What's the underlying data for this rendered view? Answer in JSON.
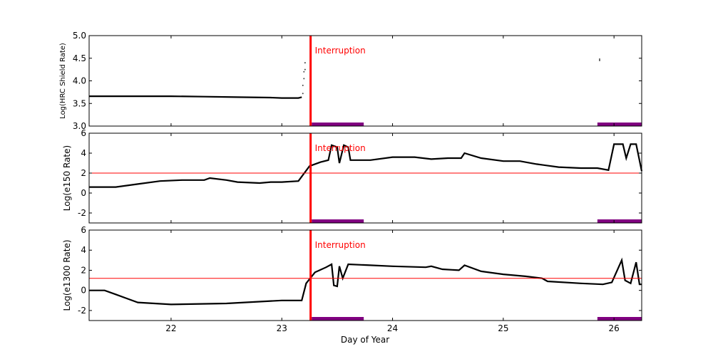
{
  "chart_data": {
    "type": "line",
    "xlabel": "Day of Year",
    "xlim": [
      21.26,
      26.25
    ],
    "xticks": [
      22,
      23,
      24,
      25,
      26
    ],
    "grid": false,
    "colors": {
      "series": "#000000",
      "interruption": "#ff0000",
      "threshold": "#ff0000",
      "interval_bar": "#800080"
    },
    "interruption": {
      "label": "Interruption",
      "x": 23.26
    },
    "interval_bars": [
      [
        23.27,
        23.74
      ],
      [
        25.85,
        26.25
      ]
    ],
    "panels": [
      {
        "ylabel": "Log(HRC Shield Rate)",
        "ylim": [
          3.0,
          5.0
        ],
        "yticks": [
          "3.0",
          "3.5",
          "4.0",
          "4.5",
          "5.0"
        ],
        "threshold": null,
        "series": [
          {
            "x": [
              21.26,
              21.6,
              22.0,
              22.3,
              22.6,
              22.9,
              23.0,
              23.15,
              23.18
            ],
            "y": [
              3.66,
              3.66,
              3.66,
              3.65,
              3.64,
              3.63,
              3.62,
              3.62,
              3.64
            ]
          },
          {
            "points": [
              [
                23.19,
                3.72
              ],
              [
                23.19,
                3.9
              ],
              [
                23.2,
                4.05
              ],
              [
                23.2,
                4.2
              ],
              [
                23.21,
                4.25
              ],
              [
                23.21,
                4.4
              ],
              [
                25.87,
                4.45
              ],
              [
                25.87,
                4.48
              ]
            ]
          }
        ]
      },
      {
        "ylabel": "Log(e150  Rate)",
        "ylim": [
          -3,
          6
        ],
        "yticks": [
          "-2",
          "0",
          "2",
          "4",
          "6"
        ],
        "threshold": 2.0,
        "series": [
          {
            "x": [
              21.26,
              21.5,
              21.7,
              21.9,
              22.1,
              22.3,
              22.35,
              22.5,
              22.6,
              22.8,
              22.9,
              23.0,
              23.15,
              23.25,
              23.35,
              23.42,
              23.45,
              23.5,
              23.52,
              23.56,
              23.6,
              23.62,
              23.8,
              24.0,
              24.2,
              24.35,
              24.5,
              24.62,
              24.65,
              24.8,
              25.0,
              25.15,
              25.3,
              25.5,
              25.7,
              25.85,
              25.95,
              26.0,
              26.08,
              26.11,
              26.15,
              26.2,
              26.25
            ],
            "y": [
              0.6,
              0.6,
              0.9,
              1.2,
              1.3,
              1.3,
              1.5,
              1.3,
              1.1,
              1.0,
              1.1,
              1.1,
              1.2,
              2.7,
              3.1,
              3.3,
              4.8,
              4.6,
              3.0,
              4.8,
              4.6,
              3.3,
              3.3,
              3.6,
              3.6,
              3.4,
              3.5,
              3.5,
              4.0,
              3.5,
              3.2,
              3.2,
              2.9,
              2.6,
              2.5,
              2.5,
              2.3,
              4.9,
              4.9,
              3.5,
              4.9,
              4.9,
              2.2
            ]
          }
        ]
      },
      {
        "ylabel": "Log(e1300 Rate)",
        "ylim": [
          -3,
          6
        ],
        "yticks": [
          "-2",
          "0",
          "2",
          "4",
          "6"
        ],
        "threshold": 1.2,
        "series": [
          {
            "x": [
              21.26,
              21.4,
              21.5,
              21.6,
              21.7,
              22.0,
              22.5,
              23.0,
              23.18,
              23.22,
              23.3,
              23.4,
              23.45,
              23.47,
              23.5,
              23.52,
              23.55,
              23.6,
              23.8,
              24.0,
              24.3,
              24.35,
              24.45,
              24.6,
              24.65,
              24.8,
              25.0,
              25.2,
              25.35,
              25.4,
              25.7,
              25.9,
              25.98,
              26.07,
              26.1,
              26.15,
              26.2,
              26.23,
              26.25
            ],
            "y": [
              0.0,
              0.0,
              -0.4,
              -0.8,
              -1.2,
              -1.4,
              -1.3,
              -1.0,
              -1.0,
              0.7,
              1.8,
              2.3,
              2.6,
              0.5,
              0.4,
              2.4,
              1.2,
              2.6,
              2.5,
              2.4,
              2.3,
              2.4,
              2.1,
              2.0,
              2.5,
              1.9,
              1.6,
              1.4,
              1.2,
              0.9,
              0.7,
              0.6,
              0.8,
              3.0,
              1.0,
              0.7,
              2.8,
              0.6,
              0.6
            ]
          }
        ]
      }
    ]
  }
}
